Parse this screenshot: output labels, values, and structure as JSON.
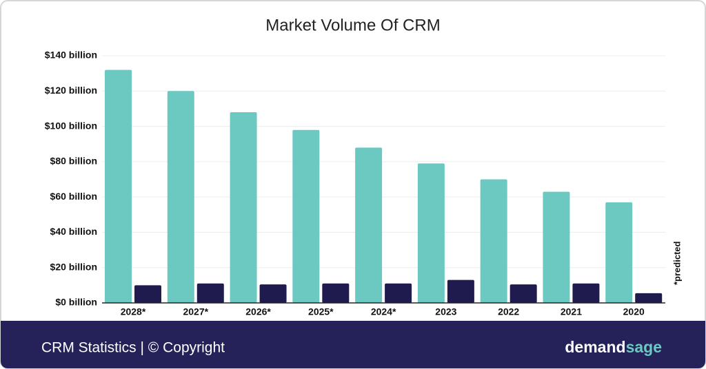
{
  "chart_data": {
    "type": "bar",
    "title": "Market Volume Of CRM",
    "categories": [
      "2028*",
      "2027*",
      "2026*",
      "2025*",
      "2024*",
      "2023",
      "2022",
      "2021",
      "2020"
    ],
    "series": [
      {
        "color": "#6cc9c2",
        "values": [
          132,
          120,
          108,
          98,
          88,
          79,
          70,
          63,
          57
        ]
      },
      {
        "color": "#1f1b4e",
        "values": [
          10,
          11,
          10.5,
          11,
          11,
          13,
          10.5,
          11,
          5.5
        ]
      }
    ],
    "ylim": [
      0,
      140
    ],
    "yticks": [
      {
        "value": 0,
        "label": "$0 billion"
      },
      {
        "value": 20,
        "label": "$20 billion"
      },
      {
        "value": 40,
        "label": "$40 billion"
      },
      {
        "value": 60,
        "label": "$60 billion"
      },
      {
        "value": 80,
        "label": "$80 billion"
      },
      {
        "value": 100,
        "label": "$100 billion"
      },
      {
        "value": 120,
        "label": "$120 billion"
      },
      {
        "value": 140,
        "label": "$140 billion"
      }
    ],
    "grid": true,
    "annotation": "*predicted"
  },
  "footer": {
    "text": "CRM Statistics | © Copyright",
    "brand": [
      "demand",
      "sage"
    ]
  }
}
